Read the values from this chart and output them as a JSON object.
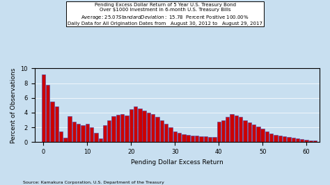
{
  "title_line1": "Pending Excess Dollar Return of 5 Year U.S. Treasury Bond",
  "title_line2": "Over $1000 Investment in 6-month U.S. Treasury Bills",
  "title_line3": "Average: $ 25.07   Standard Deviation: $ 15.78  Percent Positive 100.00%",
  "title_line4": "Daily Data for All Origination Dates from   August 30, 2012 to   August 29, 2017",
  "xlabel": "Pending Dollar Excess Return",
  "ylabel": "Percent of Observations",
  "source": "Source: Kamakura Corporation, U.S. Department of the Treasury",
  "background_color": "#c8dff0",
  "bar_color": "#cc0000",
  "bar_edge_color": "#4444aa",
  "xlim": [
    -2,
    63
  ],
  "ylim": [
    0,
    10
  ],
  "xticks": [
    0,
    10,
    20,
    30,
    40,
    50,
    60
  ],
  "yticks": [
    0,
    2,
    4,
    6,
    8,
    10
  ],
  "bar_width": 0.85,
  "bar_centers": [
    0,
    1,
    2,
    3,
    4,
    5,
    6,
    7,
    8,
    9,
    10,
    11,
    12,
    13,
    14,
    15,
    16,
    17,
    18,
    19,
    20,
    21,
    22,
    23,
    24,
    25,
    26,
    27,
    28,
    29,
    30,
    31,
    32,
    33,
    34,
    35,
    36,
    37,
    38,
    39,
    40,
    41,
    42,
    43,
    44,
    45,
    46,
    47,
    48,
    49,
    50,
    51,
    52,
    53,
    54,
    55,
    56,
    57,
    58,
    59,
    60,
    61,
    62
  ],
  "bar_heights": [
    9.2,
    7.8,
    5.5,
    4.8,
    1.5,
    0.6,
    3.5,
    2.8,
    2.5,
    2.3,
    2.5,
    2.0,
    1.3,
    0.5,
    2.3,
    3.0,
    3.5,
    3.7,
    3.8,
    3.6,
    4.5,
    4.8,
    4.6,
    4.3,
    4.0,
    3.8,
    3.4,
    3.0,
    2.5,
    2.0,
    1.5,
    1.3,
    1.1,
    1.0,
    0.9,
    0.9,
    0.8,
    0.8,
    0.7,
    0.7,
    2.8,
    3.0,
    3.4,
    3.8,
    3.6,
    3.4,
    3.0,
    2.7,
    2.4,
    2.1,
    1.8,
    1.5,
    1.2,
    1.0,
    0.9,
    0.8,
    0.7,
    0.6,
    0.5,
    0.4,
    0.3,
    0.25,
    0.2
  ]
}
